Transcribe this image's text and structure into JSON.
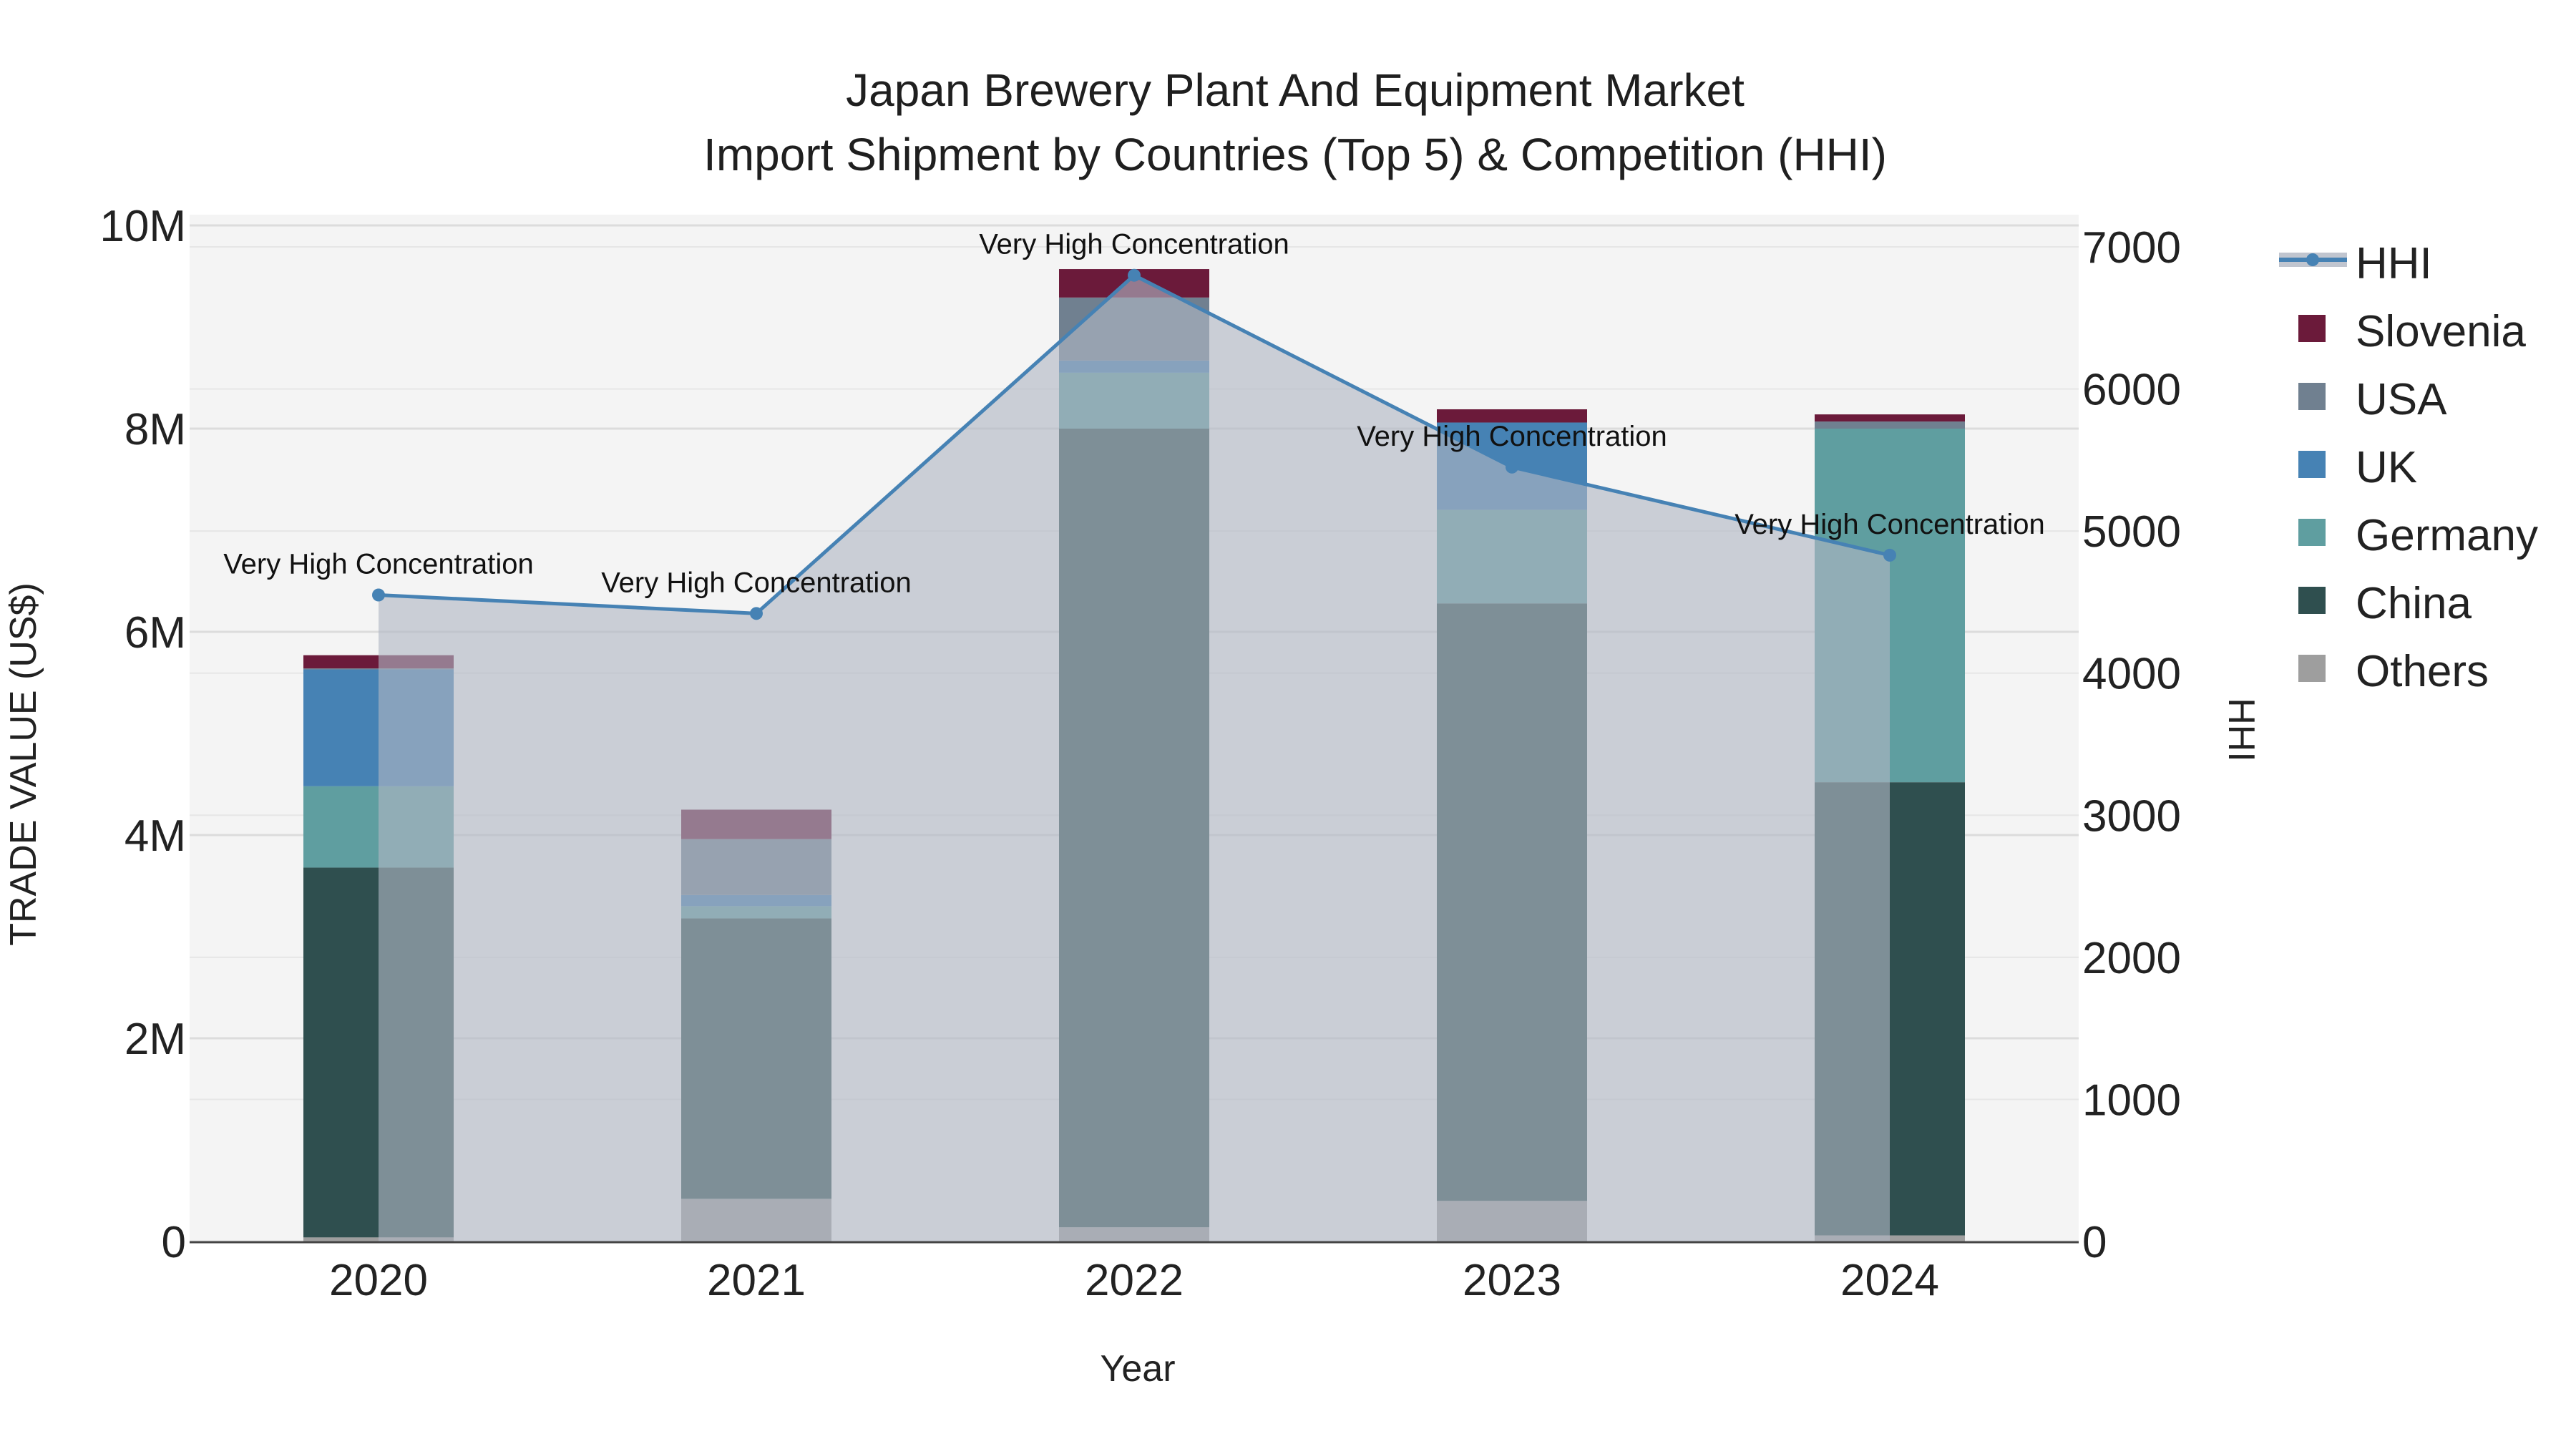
{
  "chart_data": {
    "type": "bar",
    "title": "Japan Brewery Plant And Equipment Market",
    "subtitle": "Import Shipment by Countries (Top 5) & Competition (HHI)",
    "xlabel": "Year",
    "ylabel": "TRADE VALUE (US$)",
    "y2label": "HHI",
    "categories": [
      "2020",
      "2021",
      "2022",
      "2023",
      "2024"
    ],
    "ylim": [
      0,
      10000000
    ],
    "y2lim": [
      0,
      7000
    ],
    "y_ticks": [
      0,
      2000000,
      4000000,
      6000000,
      8000000,
      10000000
    ],
    "y_tick_labels": [
      "0",
      "2M",
      "4M",
      "6M",
      "8M",
      "10M"
    ],
    "y2_ticks": [
      0,
      1000,
      2000,
      3000,
      4000,
      5000,
      6000,
      7000
    ],
    "y2_tick_labels": [
      "0",
      "1000",
      "2000",
      "3000",
      "4000",
      "5000",
      "6000",
      "7000"
    ],
    "grid": true,
    "legend_position": "right",
    "stacked": true,
    "series": [
      {
        "name": "Others",
        "color": "#9e9e9e",
        "values": [
          40000,
          420000,
          140000,
          400000,
          60000
        ]
      },
      {
        "name": "China",
        "color": "#2f4f4f",
        "values": [
          3640000,
          2760000,
          7860000,
          5880000,
          4460000
        ]
      },
      {
        "name": "Germany",
        "color": "#5f9ea0",
        "values": [
          800000,
          120000,
          550000,
          920000,
          3480000
        ]
      },
      {
        "name": "UK",
        "color": "#4682b4",
        "values": [
          1150000,
          110000,
          120000,
          860000,
          0
        ]
      },
      {
        "name": "USA",
        "color": "#708090",
        "values": [
          10000,
          550000,
          620000,
          0,
          70000
        ]
      },
      {
        "name": "Slovenia",
        "color": "#6b1a3a",
        "values": [
          130000,
          290000,
          280000,
          130000,
          70000
        ]
      }
    ],
    "hhi": {
      "name": "HHI",
      "color": "#4682b4",
      "fill_color": "#b0b7c3",
      "values": [
        4550,
        4420,
        6800,
        5450,
        4830
      ],
      "annotations": [
        "Very High Concentration",
        "Very High Concentration",
        "Very High Concentration",
        "Very High Concentration",
        "Very High Concentration"
      ]
    },
    "legend": [
      "HHI",
      "Slovenia",
      "USA",
      "UK",
      "Germany",
      "China",
      "Others"
    ]
  }
}
